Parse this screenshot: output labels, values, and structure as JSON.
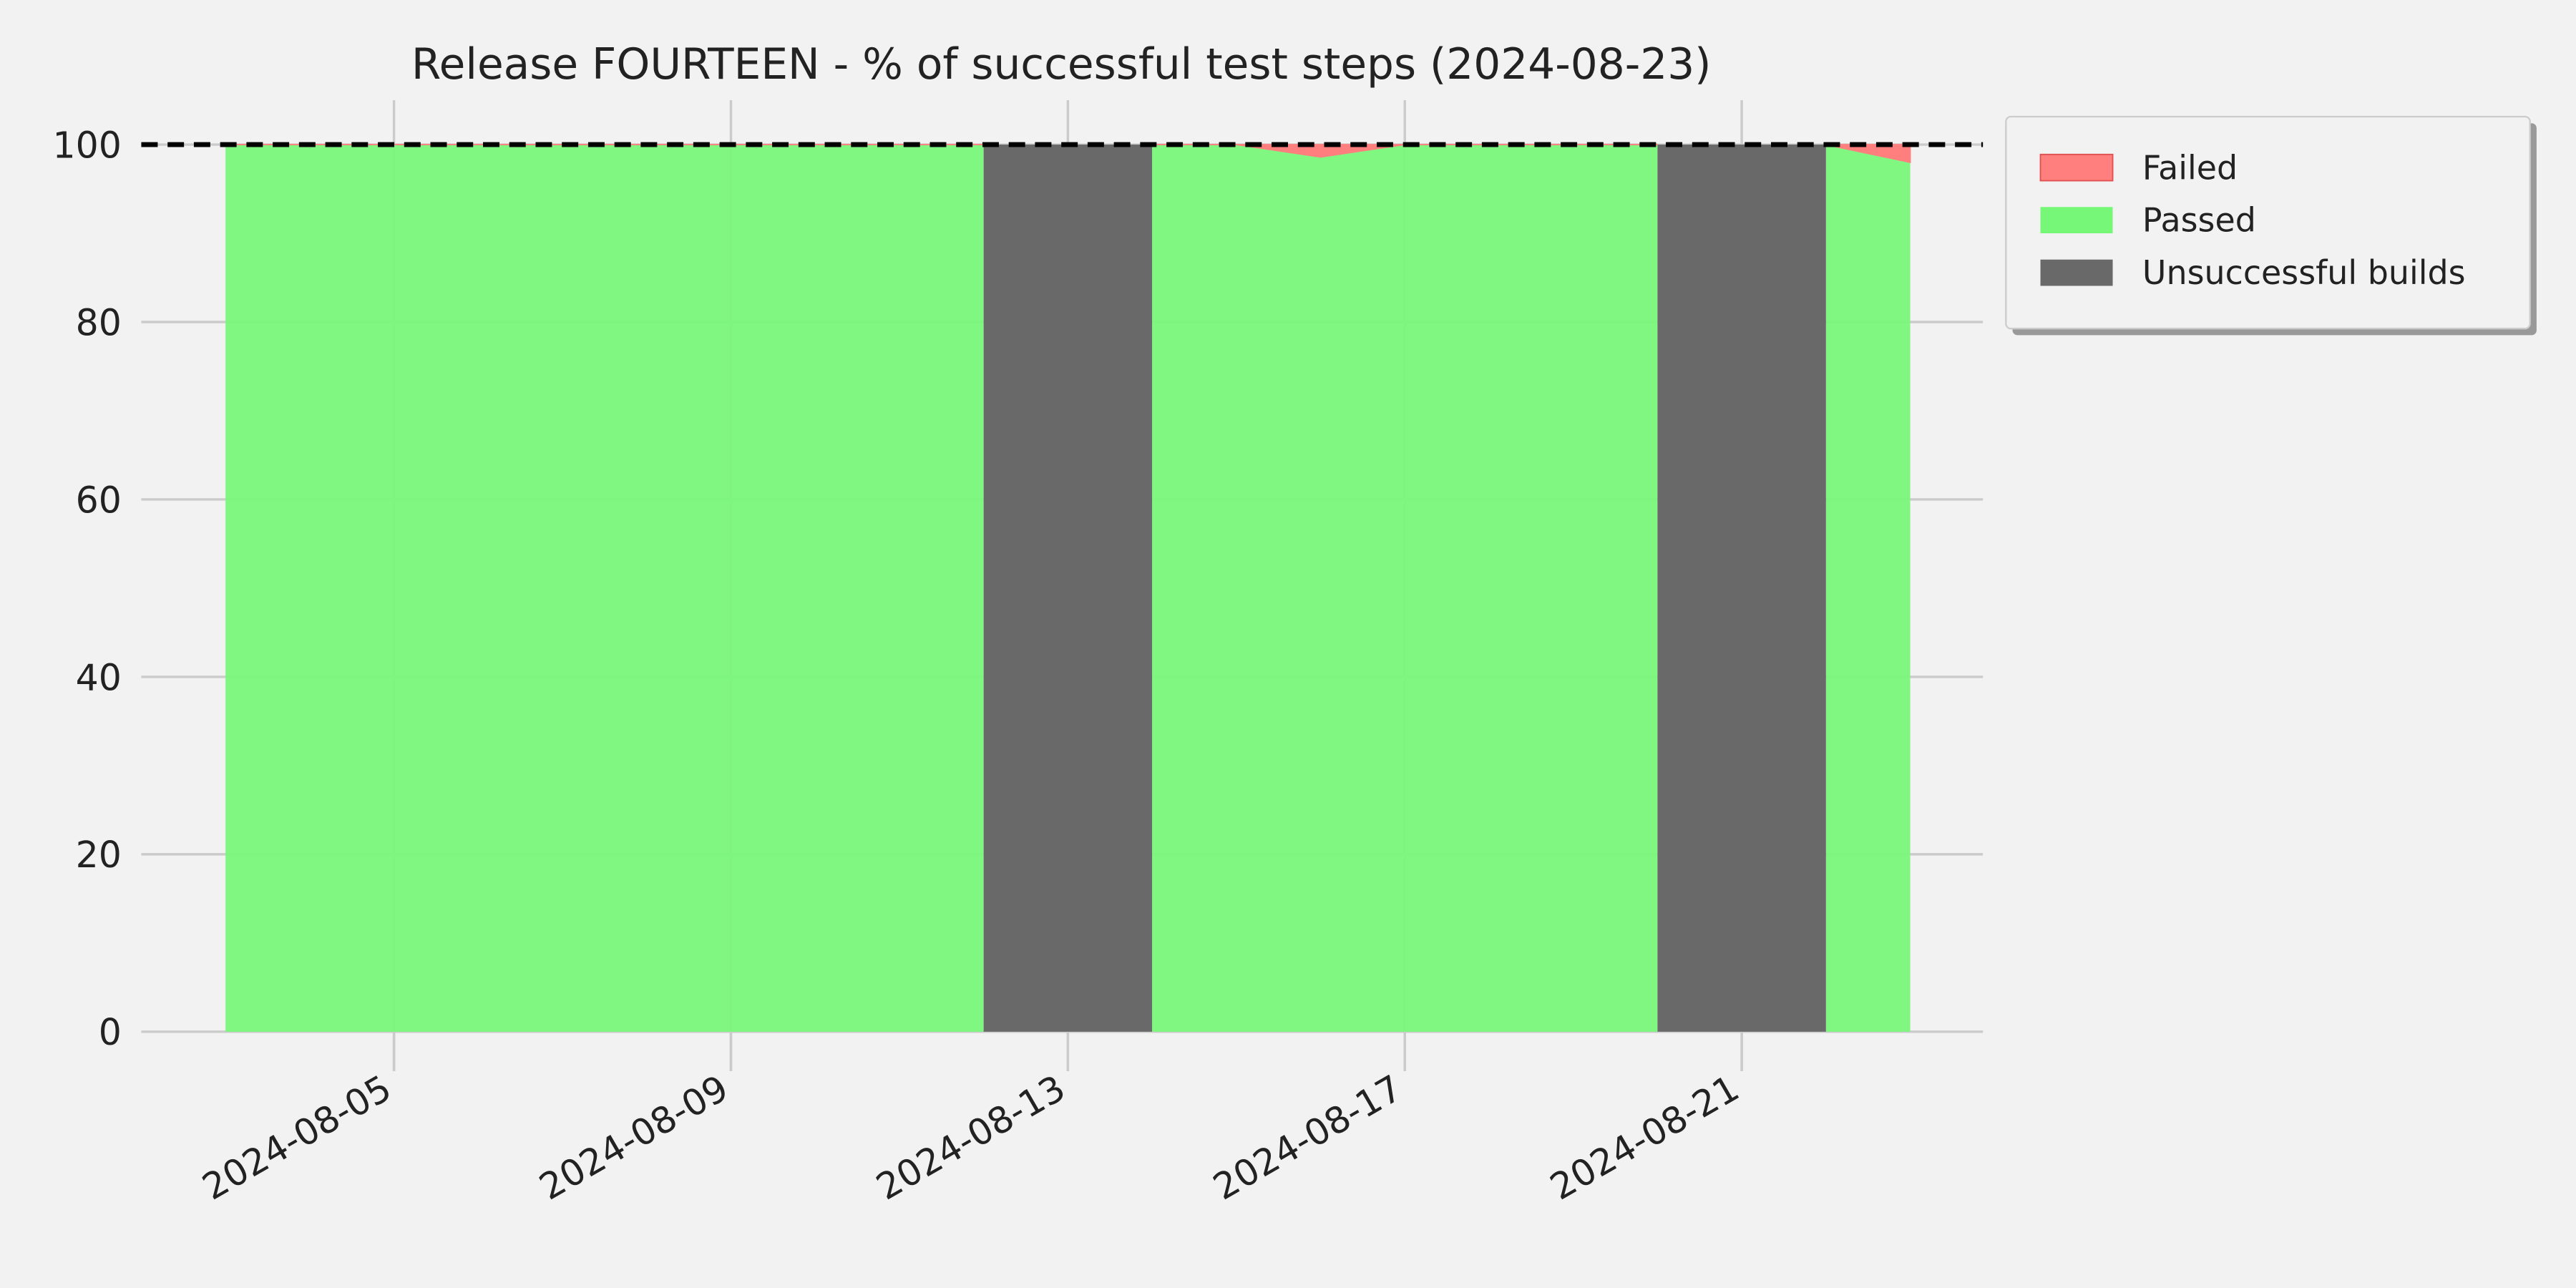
{
  "chart_data": {
    "type": "area",
    "title": "Release FOURTEEN - % of successful test steps (2024-08-23)",
    "x": [
      "2024-08-03",
      "2024-08-04",
      "2024-08-05",
      "2024-08-06",
      "2024-08-07",
      "2024-08-08",
      "2024-08-09",
      "2024-08-10",
      "2024-08-11",
      "2024-08-12",
      "2024-08-13",
      "2024-08-14",
      "2024-08-15",
      "2024-08-16",
      "2024-08-17",
      "2024-08-18",
      "2024-08-19",
      "2024-08-20",
      "2024-08-21",
      "2024-08-22",
      "2024-08-23"
    ],
    "series": [
      {
        "name": "Failed",
        "color": "#ff7f7f",
        "values": [
          0,
          0,
          0,
          0,
          0,
          0,
          0,
          0,
          0,
          0,
          null,
          0,
          0,
          1.4,
          0,
          0,
          0,
          0,
          null,
          0,
          2
        ]
      },
      {
        "name": "Passed",
        "color": "#77f777",
        "values": [
          100,
          100,
          100,
          100,
          100,
          100,
          100,
          100,
          100,
          100,
          null,
          100,
          100,
          98.6,
          100,
          100,
          100,
          100,
          null,
          100,
          98
        ]
      },
      {
        "name": "Unsuccessful builds",
        "color": "#696969",
        "values": [
          null,
          null,
          null,
          null,
          null,
          null,
          null,
          null,
          null,
          null,
          100,
          null,
          null,
          null,
          null,
          null,
          null,
          null,
          100,
          null,
          null
        ]
      }
    ],
    "reference_line": 100,
    "xlim": [
      "2024-08-02",
      "2024-08-24"
    ],
    "xticks": [
      "2024-08-05",
      "2024-08-09",
      "2024-08-13",
      "2024-08-17",
      "2024-08-21"
    ],
    "ylim": [
      -5,
      105
    ],
    "yticks": [
      0,
      20,
      40,
      60,
      80,
      100
    ],
    "grid": true,
    "legend": "outside upper right"
  }
}
